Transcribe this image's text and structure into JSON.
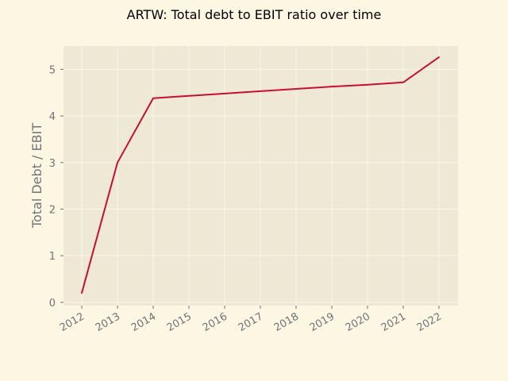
{
  "chart_data": {
    "type": "line",
    "title": "ARTW: Total debt to EBIT ratio over time",
    "xlabel": "",
    "ylabel": "Total Debt / EBIT",
    "x": [
      "2012",
      "2013",
      "2014",
      "2015",
      "2016",
      "2017",
      "2018",
      "2019",
      "2020",
      "2021",
      "2022"
    ],
    "series": [
      {
        "values": [
          0.2,
          3.0,
          4.38,
          4.43,
          4.48,
          4.53,
          4.58,
          4.63,
          4.67,
          4.72,
          5.26
        ],
        "color": "#c8102e"
      }
    ],
    "yticks": [
      0,
      1,
      2,
      3,
      4,
      5
    ],
    "ylim": [
      -0.07,
      5.5
    ],
    "grid": true,
    "colors": {
      "page_background": "#fdf6e3",
      "plot_background": "#eee8d5",
      "grid": "#fbf7ec",
      "line": "#c8102e",
      "tick_text": "#6d7478"
    }
  }
}
